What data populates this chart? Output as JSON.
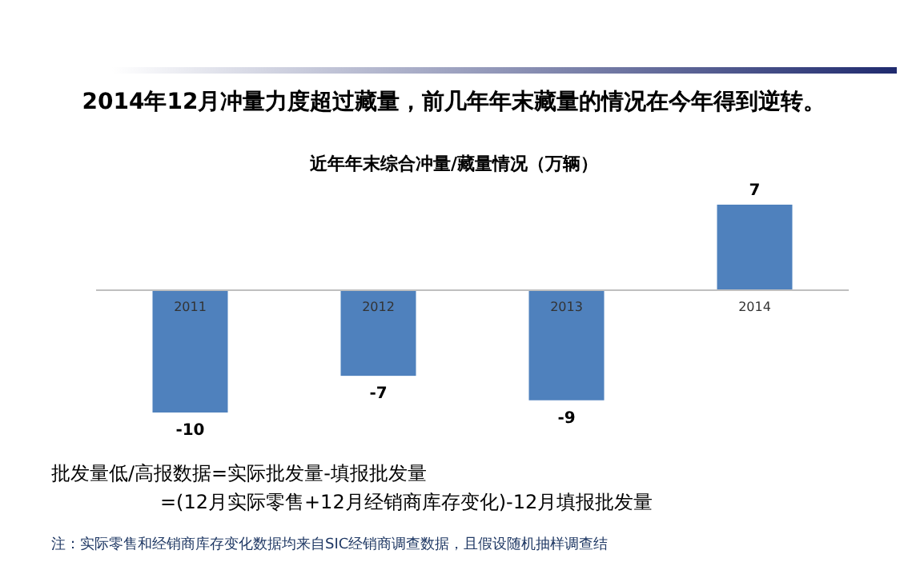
{
  "chart_data": {
    "type": "bar",
    "title": "2014年12月冲量力度超过藏量，前几年年末藏量的情况在今年得到逆转。",
    "subtitle": "近年年末综合冲量/藏量情况（万辆）",
    "categories": [
      "2011",
      "2012",
      "2013",
      "2014"
    ],
    "values": [
      -10,
      -7,
      -9,
      7
    ],
    "color": "#4f81bd",
    "data_labels": true,
    "annotations": [
      "批发量低/高报数据=实际批发量-填报批发量",
      "=(12月实际零售+12月经销商库存变化)-12月填报批发量",
      "注：实际零售和经销商库存变化数据均来自SIC经销商调查数据，且假设随机抽样调查结"
    ]
  }
}
